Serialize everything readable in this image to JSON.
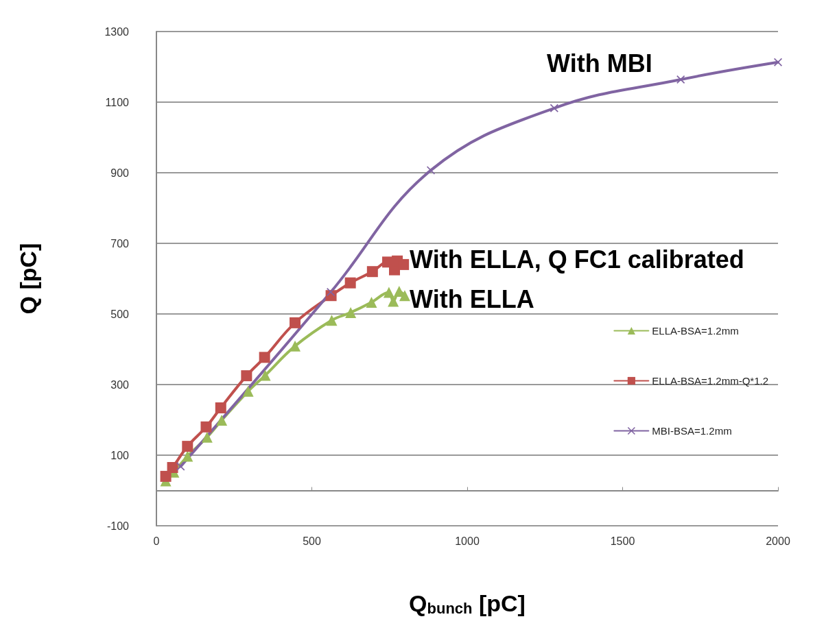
{
  "chart_data": {
    "type": "line",
    "xlabel": "Q$_{bunch}$ [pC]",
    "ylabel": "Q [pC]",
    "xlim": [
      0,
      2000
    ],
    "xticks": [
      0,
      500,
      1000,
      1500,
      2000
    ],
    "ylim": [
      -100,
      1300
    ],
    "yticks": [
      -100,
      100,
      300,
      500,
      700,
      900,
      1100,
      1300
    ],
    "grid": "y",
    "legend": "right",
    "line_style": "solid",
    "series": [
      {
        "name": "ELLA-BSA=1.2mm",
        "color": "#9bbb59",
        "marker": "triangle",
        "x": [
          30,
          56,
          100,
          163,
          210,
          295,
          350,
          446,
          564,
          625,
          692,
          748,
          762,
          781,
          799
        ],
        "values": [
          27,
          52,
          97,
          151,
          199,
          281,
          326,
          409,
          482,
          504,
          533,
          561,
          536,
          564,
          552
        ]
      },
      {
        "name": "ELLA-BSA=1.2mm-Q*1.2",
        "color": "#c0504d",
        "marker": "square",
        "x": [
          30,
          52,
          100,
          160,
          207,
          290,
          348,
          446,
          562,
          624,
          695,
          744,
          766,
          775,
          795
        ],
        "values": [
          40,
          65,
          125,
          180,
          234,
          325,
          377,
          475,
          552,
          588,
          620,
          647,
          625,
          650,
          640
        ]
      },
      {
        "name": "MBI-BSA=1.2mm",
        "color": "#8064a2",
        "marker": "cross",
        "x": [
          78,
          561,
          883,
          1280,
          1687,
          2000
        ],
        "values": [
          68,
          562,
          907,
          1083,
          1164,
          1213
        ]
      }
    ],
    "annotations": [
      "With MBI",
      "With ELLA, Q FC1 calibrated",
      "With ELLA"
    ]
  }
}
